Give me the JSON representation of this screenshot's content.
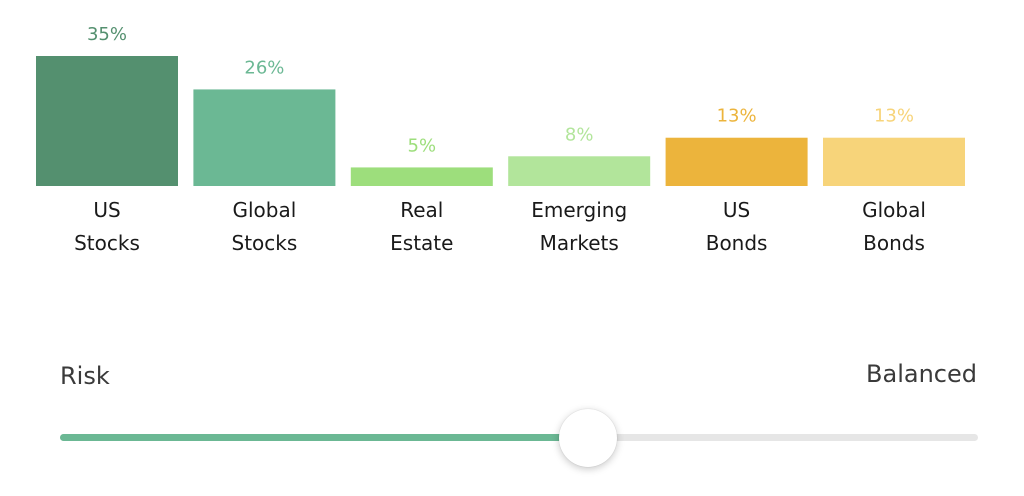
{
  "chart_data": {
    "type": "bar",
    "categories": [
      [
        "US",
        "Stocks"
      ],
      [
        "Global",
        "Stocks"
      ],
      [
        "Real",
        "Estate"
      ],
      [
        "Emerging",
        "Markets"
      ],
      [
        "US",
        "Bonds"
      ],
      [
        "Global",
        "Bonds"
      ]
    ],
    "values": [
      35,
      26,
      5,
      8,
      13,
      13
    ],
    "value_labels": [
      "35%",
      "26%",
      "5%",
      "8%",
      "13%",
      "13%"
    ],
    "colors": [
      "#54906f",
      "#6bb894",
      "#9dde7c",
      "#b2e59b",
      "#ecb43c",
      "#f7d47a"
    ],
    "ylim": [
      0,
      35
    ]
  },
  "slider": {
    "left_label": "Risk",
    "right_label": "Balanced",
    "value": 0.575,
    "fill_color": "#6bb894",
    "track_color": "#e6e6e6"
  }
}
